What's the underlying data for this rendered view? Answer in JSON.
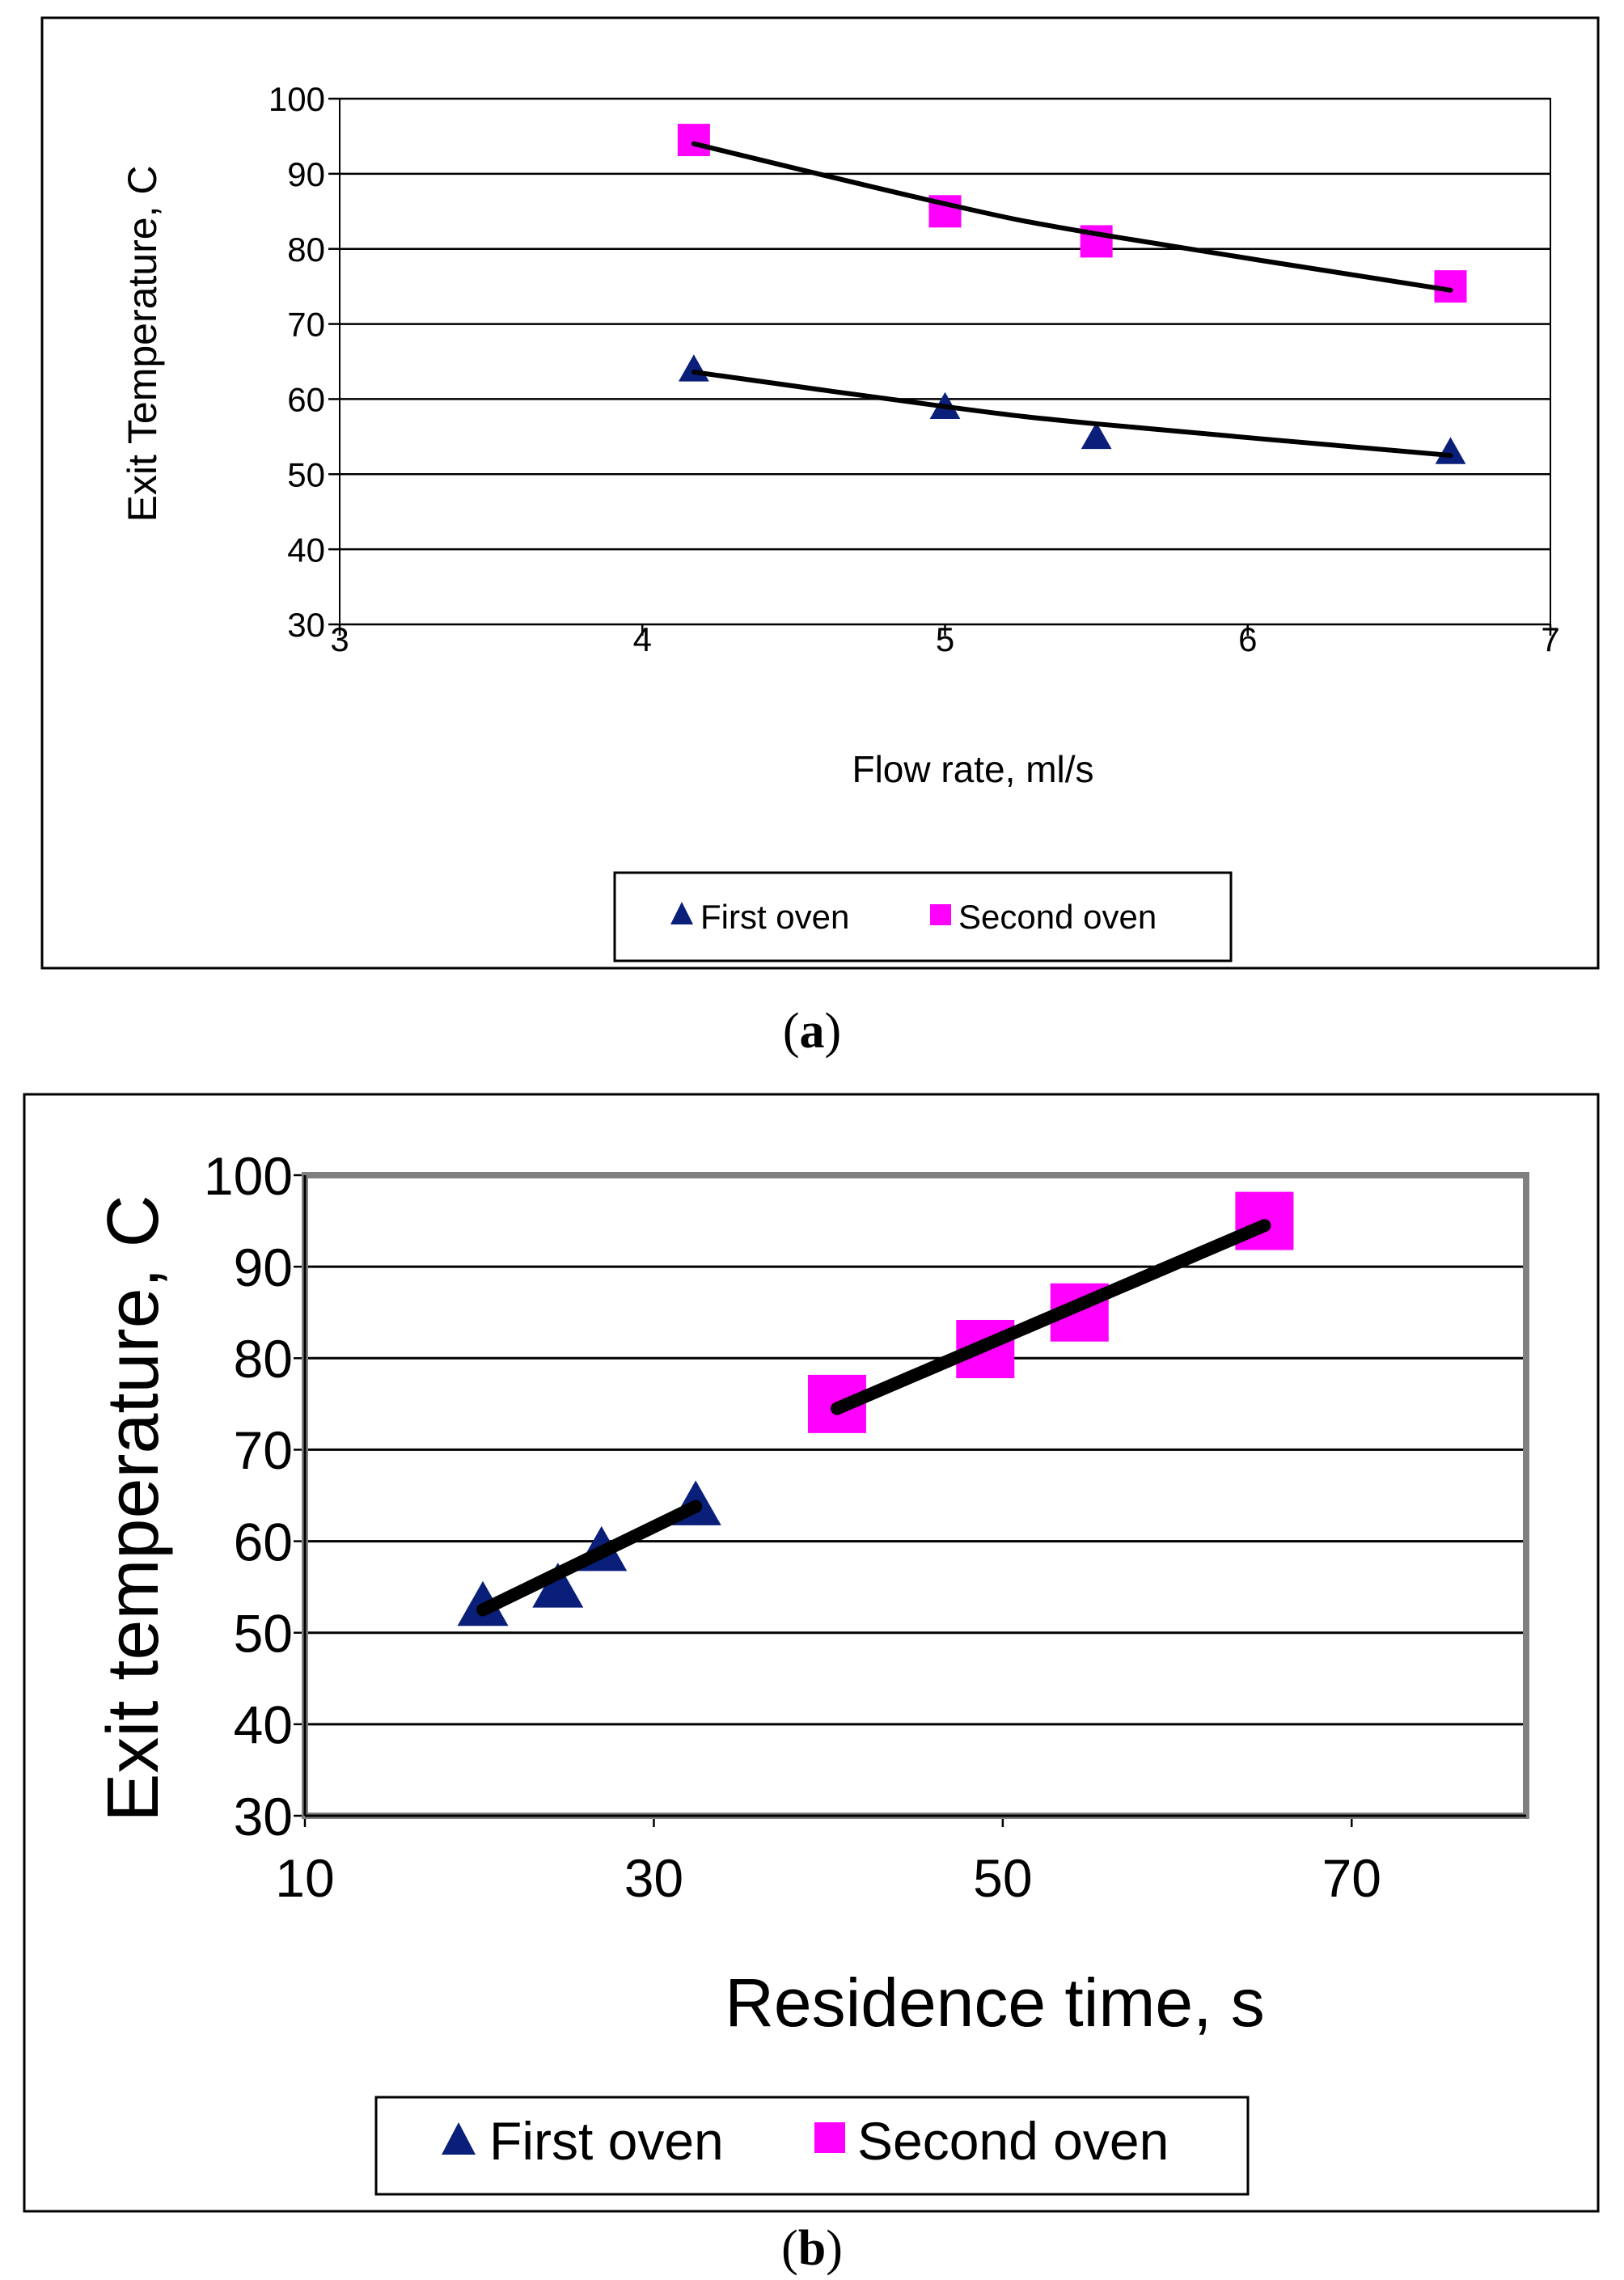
{
  "colors": {
    "first_oven": "#0a1f7a",
    "second_oven": "#ff00ff",
    "fit_line": "#000000",
    "grid": "#000000",
    "plot_frame_b": "#808080"
  },
  "chart_data": [
    {
      "type": "scatter",
      "caption_open": "(",
      "caption_letter": "a",
      "caption_close": ")",
      "xlabel": "Flow rate, ml/s",
      "ylabel": "Exit Temperature, C",
      "xlim": [
        3,
        7
      ],
      "ylim": [
        30,
        100
      ],
      "xticks": [
        "3",
        "4",
        "5",
        "6",
        "7"
      ],
      "yticks": [
        "30",
        "40",
        "50",
        "60",
        "70",
        "80",
        "90",
        "100"
      ],
      "grid": "horizontal",
      "legend_position": "bottom",
      "series": [
        {
          "name": "First oven",
          "marker": "triangle",
          "x": [
            4.17,
            5.0,
            5.5,
            6.67
          ],
          "y": [
            64,
            59,
            55,
            53
          ],
          "trend": {
            "x": [
              4.17,
              5.0,
              5.5,
              6.67
            ],
            "y": [
              63.6,
              59.0,
              56.7,
              52.5
            ]
          }
        },
        {
          "name": "Second oven",
          "marker": "square",
          "x": [
            4.17,
            5.0,
            5.5,
            6.67
          ],
          "y": [
            94.5,
            85,
            81,
            75
          ],
          "trend": {
            "x": [
              4.17,
              5.0,
              5.5,
              6.67
            ],
            "y": [
              94.0,
              86.0,
              82.0,
              74.5
            ]
          }
        }
      ]
    },
    {
      "type": "scatter",
      "caption_open": "(",
      "caption_letter": "b",
      "caption_close": ")",
      "xlabel": "Residence time, s",
      "ylabel": "Exit temperature, C",
      "xlim": [
        10,
        80
      ],
      "ylim": [
        30,
        100
      ],
      "xticks": [
        "10",
        "30",
        "50",
        "70"
      ],
      "xtick_values": [
        10,
        30,
        50,
        70
      ],
      "yticks": [
        "30",
        "40",
        "50",
        "60",
        "70",
        "80",
        "90",
        "100"
      ],
      "grid": "horizontal",
      "legend_position": "bottom",
      "series": [
        {
          "name": "First oven",
          "marker": "triangle",
          "x": [
            20.2,
            24.5,
            27.0,
            32.4
          ],
          "y": [
            53,
            55,
            59,
            64
          ],
          "trend": {
            "x": [
              20.2,
              32.4
            ],
            "y": [
              52.5,
              63.8
            ]
          }
        },
        {
          "name": "Second oven",
          "marker": "square",
          "x": [
            40.5,
            49.0,
            54.4,
            65.0
          ],
          "y": [
            75,
            81,
            85,
            95
          ],
          "trend": {
            "x": [
              40.5,
              65.0
            ],
            "y": [
              74.5,
              94.5
            ]
          }
        }
      ]
    }
  ]
}
